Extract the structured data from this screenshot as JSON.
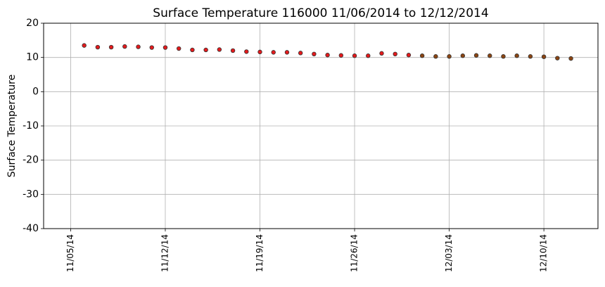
{
  "chart_data": {
    "type": "scatter",
    "title": "Surface Temperature 116000  11/06/2014 to 12/12/2014",
    "y_label": "Surface Temperature",
    "grid": true,
    "xlim": [
      "11/03/14",
      "12/14/14"
    ],
    "xticks": [
      "11/05/14",
      "11/12/14",
      "11/19/14",
      "11/26/14",
      "12/03/14",
      "12/10/14"
    ],
    "ylim": [
      -40,
      20
    ],
    "yticks": [
      -40,
      -30,
      -20,
      -10,
      0,
      10,
      20
    ],
    "series": [
      {
        "color": "#e41a1c",
        "x": [
          "11/06/14",
          "11/07/14",
          "11/08/14",
          "11/09/14",
          "11/10/14",
          "11/11/14",
          "11/12/14",
          "11/13/14",
          "11/14/14",
          "11/15/14",
          "11/16/14",
          "11/17/14",
          "11/18/14",
          "11/19/14",
          "11/20/14",
          "11/21/14",
          "11/22/14",
          "11/23/14",
          "11/24/14",
          "11/25/14",
          "11/26/14",
          "11/27/14",
          "11/28/14",
          "11/29/14",
          "11/30/14"
        ],
        "values": [
          13.5,
          13.0,
          13.0,
          13.2,
          13.1,
          12.9,
          12.9,
          12.6,
          12.2,
          12.2,
          12.3,
          12.0,
          11.7,
          11.6,
          11.5,
          11.5,
          11.3,
          11.0,
          10.7,
          10.6,
          10.5,
          10.5,
          11.2,
          11.0,
          10.7
        ]
      },
      {
        "color": "#8b4513",
        "x": [
          "12/01/14",
          "12/02/14",
          "12/03/14",
          "12/04/14",
          "12/05/14",
          "12/06/14",
          "12/07/14",
          "12/08/14",
          "12/09/14",
          "12/10/14",
          "12/11/14",
          "12/12/14"
        ],
        "values": [
          10.5,
          10.3,
          10.3,
          10.5,
          10.6,
          10.5,
          10.3,
          10.5,
          10.3,
          10.2,
          9.8,
          9.7
        ]
      }
    ]
  }
}
